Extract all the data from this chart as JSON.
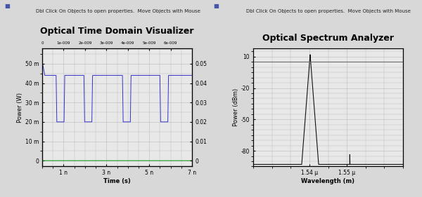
{
  "fig_width": 6.0,
  "fig_height": 2.81,
  "bg_color": "#d8d8d8",
  "plot_bg_color": "#e8e8e8",
  "grid_color": "#bbbbbb",
  "left_title": "Optical Time Domain Visualizer",
  "left_subtitle": "Dbl Click On Objects to open properties.  Move Objects with Mouse",
  "right_title": "Optical Spectrum Analyzer",
  "right_subtitle": "Dbl Click On Objects to open properties.  Move Objects with Mouse",
  "left_xlabel": "Time (s)",
  "left_ylabel": "Power (W)",
  "right_xlabel": "Wavelength (m)",
  "right_ylabel": "Power (dBm)",
  "time_xlim": [
    0,
    7e-09
  ],
  "time_ylim": [
    -0.003,
    0.058
  ],
  "spec_xlim": [
    1.525e-06,
    1.565e-06
  ],
  "spec_ylim": [
    -95,
    18
  ],
  "signal_color": "#3333cc",
  "green_color": "#009900",
  "spec_color": "#111111",
  "title_fontsize": 9,
  "subtitle_fontsize": 5,
  "tick_fontsize": 5.5,
  "axis_label_fontsize": 6
}
